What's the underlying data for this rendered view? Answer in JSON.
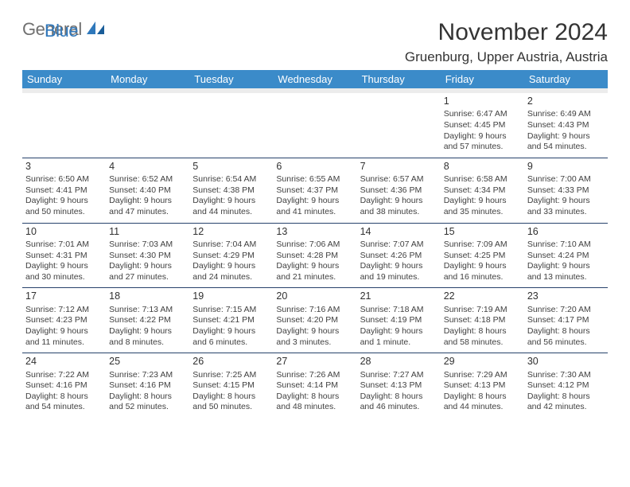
{
  "logo": {
    "word1": "General",
    "word2": "Blue",
    "shape_color": "#3078bc",
    "text1_color": "#707070"
  },
  "title": "November 2024",
  "location": "Gruenburg, Upper Austria, Austria",
  "header_bg": "#3b8bc9",
  "header_fg": "#ffffff",
  "rule_color": "#27426b",
  "spacer_bg": "#ececec",
  "days": [
    "Sunday",
    "Monday",
    "Tuesday",
    "Wednesday",
    "Thursday",
    "Friday",
    "Saturday"
  ],
  "weeks": [
    [
      null,
      null,
      null,
      null,
      null,
      {
        "n": "1",
        "sr": "Sunrise: 6:47 AM",
        "ss": "Sunset: 4:45 PM",
        "d1": "Daylight: 9 hours",
        "d2": "and 57 minutes."
      },
      {
        "n": "2",
        "sr": "Sunrise: 6:49 AM",
        "ss": "Sunset: 4:43 PM",
        "d1": "Daylight: 9 hours",
        "d2": "and 54 minutes."
      }
    ],
    [
      {
        "n": "3",
        "sr": "Sunrise: 6:50 AM",
        "ss": "Sunset: 4:41 PM",
        "d1": "Daylight: 9 hours",
        "d2": "and 50 minutes."
      },
      {
        "n": "4",
        "sr": "Sunrise: 6:52 AM",
        "ss": "Sunset: 4:40 PM",
        "d1": "Daylight: 9 hours",
        "d2": "and 47 minutes."
      },
      {
        "n": "5",
        "sr": "Sunrise: 6:54 AM",
        "ss": "Sunset: 4:38 PM",
        "d1": "Daylight: 9 hours",
        "d2": "and 44 minutes."
      },
      {
        "n": "6",
        "sr": "Sunrise: 6:55 AM",
        "ss": "Sunset: 4:37 PM",
        "d1": "Daylight: 9 hours",
        "d2": "and 41 minutes."
      },
      {
        "n": "7",
        "sr": "Sunrise: 6:57 AM",
        "ss": "Sunset: 4:36 PM",
        "d1": "Daylight: 9 hours",
        "d2": "and 38 minutes."
      },
      {
        "n": "8",
        "sr": "Sunrise: 6:58 AM",
        "ss": "Sunset: 4:34 PM",
        "d1": "Daylight: 9 hours",
        "d2": "and 35 minutes."
      },
      {
        "n": "9",
        "sr": "Sunrise: 7:00 AM",
        "ss": "Sunset: 4:33 PM",
        "d1": "Daylight: 9 hours",
        "d2": "and 33 minutes."
      }
    ],
    [
      {
        "n": "10",
        "sr": "Sunrise: 7:01 AM",
        "ss": "Sunset: 4:31 PM",
        "d1": "Daylight: 9 hours",
        "d2": "and 30 minutes."
      },
      {
        "n": "11",
        "sr": "Sunrise: 7:03 AM",
        "ss": "Sunset: 4:30 PM",
        "d1": "Daylight: 9 hours",
        "d2": "and 27 minutes."
      },
      {
        "n": "12",
        "sr": "Sunrise: 7:04 AM",
        "ss": "Sunset: 4:29 PM",
        "d1": "Daylight: 9 hours",
        "d2": "and 24 minutes."
      },
      {
        "n": "13",
        "sr": "Sunrise: 7:06 AM",
        "ss": "Sunset: 4:28 PM",
        "d1": "Daylight: 9 hours",
        "d2": "and 21 minutes."
      },
      {
        "n": "14",
        "sr": "Sunrise: 7:07 AM",
        "ss": "Sunset: 4:26 PM",
        "d1": "Daylight: 9 hours",
        "d2": "and 19 minutes."
      },
      {
        "n": "15",
        "sr": "Sunrise: 7:09 AM",
        "ss": "Sunset: 4:25 PM",
        "d1": "Daylight: 9 hours",
        "d2": "and 16 minutes."
      },
      {
        "n": "16",
        "sr": "Sunrise: 7:10 AM",
        "ss": "Sunset: 4:24 PM",
        "d1": "Daylight: 9 hours",
        "d2": "and 13 minutes."
      }
    ],
    [
      {
        "n": "17",
        "sr": "Sunrise: 7:12 AM",
        "ss": "Sunset: 4:23 PM",
        "d1": "Daylight: 9 hours",
        "d2": "and 11 minutes."
      },
      {
        "n": "18",
        "sr": "Sunrise: 7:13 AM",
        "ss": "Sunset: 4:22 PM",
        "d1": "Daylight: 9 hours",
        "d2": "and 8 minutes."
      },
      {
        "n": "19",
        "sr": "Sunrise: 7:15 AM",
        "ss": "Sunset: 4:21 PM",
        "d1": "Daylight: 9 hours",
        "d2": "and 6 minutes."
      },
      {
        "n": "20",
        "sr": "Sunrise: 7:16 AM",
        "ss": "Sunset: 4:20 PM",
        "d1": "Daylight: 9 hours",
        "d2": "and 3 minutes."
      },
      {
        "n": "21",
        "sr": "Sunrise: 7:18 AM",
        "ss": "Sunset: 4:19 PM",
        "d1": "Daylight: 9 hours",
        "d2": "and 1 minute."
      },
      {
        "n": "22",
        "sr": "Sunrise: 7:19 AM",
        "ss": "Sunset: 4:18 PM",
        "d1": "Daylight: 8 hours",
        "d2": "and 58 minutes."
      },
      {
        "n": "23",
        "sr": "Sunrise: 7:20 AM",
        "ss": "Sunset: 4:17 PM",
        "d1": "Daylight: 8 hours",
        "d2": "and 56 minutes."
      }
    ],
    [
      {
        "n": "24",
        "sr": "Sunrise: 7:22 AM",
        "ss": "Sunset: 4:16 PM",
        "d1": "Daylight: 8 hours",
        "d2": "and 54 minutes."
      },
      {
        "n": "25",
        "sr": "Sunrise: 7:23 AM",
        "ss": "Sunset: 4:16 PM",
        "d1": "Daylight: 8 hours",
        "d2": "and 52 minutes."
      },
      {
        "n": "26",
        "sr": "Sunrise: 7:25 AM",
        "ss": "Sunset: 4:15 PM",
        "d1": "Daylight: 8 hours",
        "d2": "and 50 minutes."
      },
      {
        "n": "27",
        "sr": "Sunrise: 7:26 AM",
        "ss": "Sunset: 4:14 PM",
        "d1": "Daylight: 8 hours",
        "d2": "and 48 minutes."
      },
      {
        "n": "28",
        "sr": "Sunrise: 7:27 AM",
        "ss": "Sunset: 4:13 PM",
        "d1": "Daylight: 8 hours",
        "d2": "and 46 minutes."
      },
      {
        "n": "29",
        "sr": "Sunrise: 7:29 AM",
        "ss": "Sunset: 4:13 PM",
        "d1": "Daylight: 8 hours",
        "d2": "and 44 minutes."
      },
      {
        "n": "30",
        "sr": "Sunrise: 7:30 AM",
        "ss": "Sunset: 4:12 PM",
        "d1": "Daylight: 8 hours",
        "d2": "and 42 minutes."
      }
    ]
  ]
}
